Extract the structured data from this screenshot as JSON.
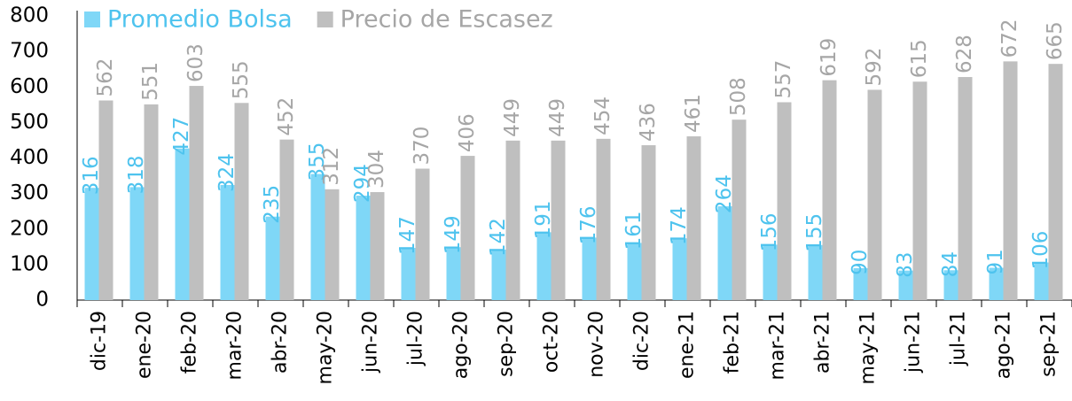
{
  "chart_data": {
    "type": "bar",
    "categories": [
      "dic-19",
      "ene-20",
      "feb-20",
      "mar-20",
      "abr-20",
      "may-20",
      "jun-20",
      "jul-20",
      "ago-20",
      "sep-20",
      "oct-20",
      "nov-20",
      "dic-20",
      "ene-21",
      "feb-21",
      "mar-21",
      "abr-21",
      "may-21",
      "jun-21",
      "jul-21",
      "ago-21",
      "sep-21"
    ],
    "series": [
      {
        "name": "Promedio Bolsa",
        "color": "#7fd7f7",
        "label_color": "#4ec3ee",
        "values": [
          316,
          318,
          427,
          324,
          235,
          355,
          294,
          147,
          149,
          142,
          191,
          176,
          161,
          174,
          264,
          156,
          155,
          90,
          83,
          84,
          91,
          106
        ]
      },
      {
        "name": "Precio de Escasez",
        "color": "#bfbfbf",
        "label_color": "#a6a6a6",
        "values": [
          562,
          551,
          603,
          555,
          452,
          312,
          304,
          370,
          406,
          449,
          449,
          454,
          436,
          461,
          508,
          557,
          619,
          592,
          615,
          628,
          672,
          665
        ]
      }
    ],
    "ylim": [
      0,
      800
    ],
    "yticks": [
      0,
      100,
      200,
      300,
      400,
      500,
      600,
      700,
      800
    ],
    "grid": false
  }
}
